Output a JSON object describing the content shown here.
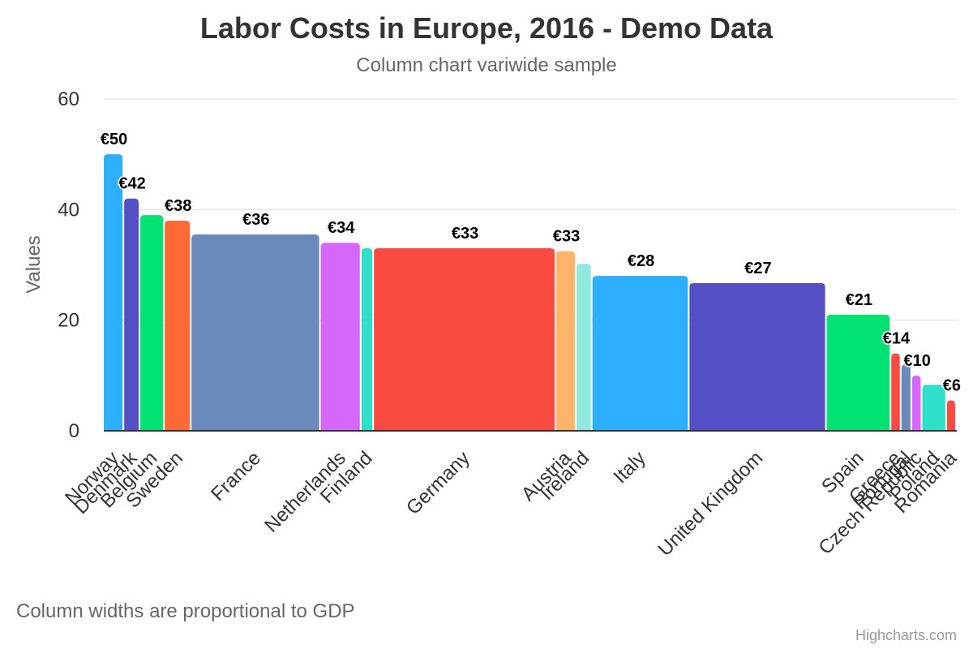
{
  "chart_data": {
    "type": "bar",
    "variant": "variwide",
    "title": "Labor Costs in Europe, 2016 - Demo Data",
    "subtitle": "Column chart variwide sample",
    "caption": "Column widths are proportional to GDP",
    "credits": "Highcharts.com",
    "ylabel": "Values",
    "ylim": [
      0,
      60
    ],
    "yticks": [
      0,
      20,
      40,
      60
    ],
    "grid": true,
    "legend": "none",
    "categories": [
      "Norway",
      "Denmark",
      "Belgium",
      "Sweden",
      "France",
      "Netherlands",
      "Finland",
      "Germany",
      "Austria",
      "Ireland",
      "Italy",
      "United Kingdom",
      "Spain",
      "Greece",
      "Portugal",
      "Czech Republic",
      "Poland",
      "Romania"
    ],
    "values": [
      50,
      42,
      39,
      38,
      35.5,
      34,
      33,
      33,
      32.5,
      30.2,
      28,
      26.7,
      21,
      14,
      12,
      10,
      8.3,
      5.5
    ],
    "widths": [
      352,
      277,
      421,
      462,
      2228,
      702,
      215,
      3144,
      349,
      275,
      1672,
      2366,
      1113,
      175,
      184,
      176,
      424,
      170
    ],
    "data_labels": [
      "€50",
      "€42",
      "",
      "€38",
      "€36",
      "€34",
      "",
      "€33",
      "€33",
      "",
      "€28",
      "€27",
      "€21",
      "€14",
      "",
      "€10",
      "",
      "€6"
    ],
    "colors": [
      "#2caffe",
      "#544fc5",
      "#00e272",
      "#fe6a35",
      "#6b8abc",
      "#d568fb",
      "#2ee0ca",
      "#fa4b42",
      "#feb56a",
      "#91e8e1",
      "#2caffe",
      "#544fc5",
      "#00e272",
      "#fa4b42",
      "#6b8abc",
      "#d568fb",
      "#2ee0ca",
      "#fa4b42"
    ]
  }
}
